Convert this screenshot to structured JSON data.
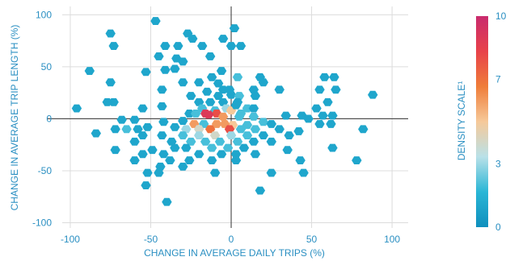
{
  "chart_data": {
    "type": "hexbin-scatter",
    "xlabel": "CHANGE IN AVERAGE DAILY TRIPS (%)",
    "ylabel": "CHANGE IN AVERAGE TRIP LENGTH (%)",
    "xlim": [
      -105,
      110
    ],
    "ylim": [
      -105,
      108
    ],
    "xticks": [
      "-100",
      "-50",
      "0",
      "50",
      "100"
    ],
    "xtick_values": [
      -100,
      -50,
      0,
      50,
      100
    ],
    "yticks": [
      "100",
      "50",
      "0",
      "-50",
      "-100"
    ],
    "ytick_values": [
      100,
      50,
      0,
      -50,
      -100
    ],
    "grid": true,
    "colorbar": {
      "label": "DENSITY SCALE¹",
      "ticks": [
        "10",
        "7",
        "3",
        "0"
      ],
      "tick_values": [
        10,
        7,
        3,
        0
      ],
      "min": 0,
      "max": 10,
      "colors": [
        "#0f8fbd",
        "#2ab6d6",
        "#b9e1e8",
        "#f6c999",
        "#ef7d3a",
        "#e8424a",
        "#c92b6e"
      ]
    },
    "points": [
      {
        "x": -47,
        "y": 94,
        "v": 1
      },
      {
        "x": 2,
        "y": 87,
        "v": 1
      },
      {
        "x": -75,
        "y": 82,
        "v": 1
      },
      {
        "x": -27,
        "y": 82,
        "v": 1
      },
      {
        "x": -24,
        "y": 77,
        "v": 1
      },
      {
        "x": -5,
        "y": 77,
        "v": 1
      },
      {
        "x": -41,
        "y": 70,
        "v": 1
      },
      {
        "x": -33,
        "y": 70,
        "v": 1
      },
      {
        "x": -18,
        "y": 70,
        "v": 1
      },
      {
        "x": 0,
        "y": 70,
        "v": 1
      },
      {
        "x": 6,
        "y": 70,
        "v": 1
      },
      {
        "x": -73,
        "y": 70,
        "v": 1
      },
      {
        "x": -45,
        "y": 60,
        "v": 1
      },
      {
        "x": -13,
        "y": 60,
        "v": 1
      },
      {
        "x": -34,
        "y": 58,
        "v": 1
      },
      {
        "x": -30,
        "y": 55,
        "v": 1
      },
      {
        "x": -41,
        "y": 47,
        "v": 1
      },
      {
        "x": -35,
        "y": 48,
        "v": 1
      },
      {
        "x": -88,
        "y": 46,
        "v": 1
      },
      {
        "x": -53,
        "y": 45,
        "v": 1
      },
      {
        "x": -6,
        "y": 46,
        "v": 1
      },
      {
        "x": -12,
        "y": 40,
        "v": 1
      },
      {
        "x": 4,
        "y": 40,
        "v": 2
      },
      {
        "x": 18,
        "y": 40,
        "v": 1
      },
      {
        "x": 58,
        "y": 40,
        "v": 1
      },
      {
        "x": 64,
        "y": 40,
        "v": 1
      },
      {
        "x": -75,
        "y": 35,
        "v": 1
      },
      {
        "x": -30,
        "y": 35,
        "v": 1
      },
      {
        "x": -20,
        "y": 35,
        "v": 1
      },
      {
        "x": 20,
        "y": 35,
        "v": 1
      },
      {
        "x": -8,
        "y": 34,
        "v": 1
      },
      {
        "x": -43,
        "y": 28,
        "v": 1
      },
      {
        "x": -5,
        "y": 28,
        "v": 1
      },
      {
        "x": -1,
        "y": 28,
        "v": 1
      },
      {
        "x": 14,
        "y": 28,
        "v": 1
      },
      {
        "x": 30,
        "y": 28,
        "v": 1
      },
      {
        "x": 55,
        "y": 28,
        "v": 1
      },
      {
        "x": -15,
        "y": 26,
        "v": 1
      },
      {
        "x": 65,
        "y": 28,
        "v": 1
      },
      {
        "x": 88,
        "y": 23,
        "v": 1
      },
      {
        "x": -25,
        "y": 22,
        "v": 1
      },
      {
        "x": -8,
        "y": 22,
        "v": 1
      },
      {
        "x": 0,
        "y": 23,
        "v": 1
      },
      {
        "x": 5,
        "y": 22,
        "v": 2
      },
      {
        "x": 15,
        "y": 22,
        "v": 1
      },
      {
        "x": -5,
        "y": 16,
        "v": 1
      },
      {
        "x": 4,
        "y": 16,
        "v": 1
      },
      {
        "x": 60,
        "y": 16,
        "v": 1
      },
      {
        "x": -73,
        "y": 16,
        "v": 1
      },
      {
        "x": -77,
        "y": 16,
        "v": 1
      },
      {
        "x": -20,
        "y": 16,
        "v": 1
      },
      {
        "x": -13,
        "y": 16,
        "v": 1
      },
      {
        "x": -3,
        "y": 10,
        "v": 3
      },
      {
        "x": 10,
        "y": 10,
        "v": 2
      },
      {
        "x": 14,
        "y": 10,
        "v": 1
      },
      {
        "x": 53,
        "y": 10,
        "v": 1
      },
      {
        "x": -96,
        "y": 10,
        "v": 1
      },
      {
        "x": -55,
        "y": 10,
        "v": 1
      },
      {
        "x": -43,
        "y": 12,
        "v": 1
      },
      {
        "x": -18,
        "y": 10,
        "v": 2
      },
      {
        "x": 0,
        "y": 8,
        "v": 5
      },
      {
        "x": 3,
        "y": 13,
        "v": 1
      },
      {
        "x": 6,
        "y": 5,
        "v": 2
      },
      {
        "x": -10,
        "y": 8,
        "v": 2
      },
      {
        "x": -26,
        "y": 5,
        "v": 1
      },
      {
        "x": -16,
        "y": 5,
        "v": 9
      },
      {
        "x": -22,
        "y": 5,
        "v": 2
      },
      {
        "x": -9,
        "y": 5,
        "v": 8
      },
      {
        "x": -14,
        "y": 4,
        "v": 9
      },
      {
        "x": -5,
        "y": 2,
        "v": 6
      },
      {
        "x": 5,
        "y": 2,
        "v": 2
      },
      {
        "x": 14,
        "y": 2,
        "v": 2
      },
      {
        "x": 34,
        "y": 3,
        "v": 1
      },
      {
        "x": 44,
        "y": 3,
        "v": 1
      },
      {
        "x": 48,
        "y": 0,
        "v": 1
      },
      {
        "x": 57,
        "y": 3,
        "v": 1
      },
      {
        "x": 63,
        "y": 3,
        "v": 1
      },
      {
        "x": 55,
        "y": -5,
        "v": 1
      },
      {
        "x": 62,
        "y": -5,
        "v": 1
      },
      {
        "x": -60,
        "y": -1,
        "v": 1
      },
      {
        "x": -68,
        "y": -1,
        "v": 1
      },
      {
        "x": -30,
        "y": -2,
        "v": 1
      },
      {
        "x": 20,
        "y": -3,
        "v": 2
      },
      {
        "x": 25,
        "y": -5,
        "v": 1
      },
      {
        "x": -42,
        "y": -3,
        "v": 1
      },
      {
        "x": -23,
        "y": -5,
        "v": 6
      },
      {
        "x": -17,
        "y": -5,
        "v": 2
      },
      {
        "x": -9,
        "y": -5,
        "v": 6
      },
      {
        "x": 1,
        "y": -6,
        "v": 5
      },
      {
        "x": -4,
        "y": -5,
        "v": 6
      },
      {
        "x": 10,
        "y": -6,
        "v": 2
      },
      {
        "x": -1,
        "y": -10,
        "v": 8
      },
      {
        "x": -13,
        "y": -10,
        "v": 7
      },
      {
        "x": -20,
        "y": -10,
        "v": 4
      },
      {
        "x": -28,
        "y": -10,
        "v": 3
      },
      {
        "x": -35,
        "y": -8,
        "v": 1
      },
      {
        "x": -52,
        "y": -8,
        "v": 1
      },
      {
        "x": -58,
        "y": -10,
        "v": 1
      },
      {
        "x": -65,
        "y": -10,
        "v": 2
      },
      {
        "x": -72,
        "y": -10,
        "v": 1
      },
      {
        "x": 6,
        "y": -10,
        "v": 2
      },
      {
        "x": 15,
        "y": -10,
        "v": 2
      },
      {
        "x": 30,
        "y": -10,
        "v": 1
      },
      {
        "x": 42,
        "y": -12,
        "v": 1
      },
      {
        "x": 82,
        "y": -10,
        "v": 1
      },
      {
        "x": -84,
        "y": -14,
        "v": 1
      },
      {
        "x": -55,
        "y": -16,
        "v": 1
      },
      {
        "x": -43,
        "y": -16,
        "v": 1
      },
      {
        "x": -30,
        "y": -16,
        "v": 2
      },
      {
        "x": -20,
        "y": -16,
        "v": 3
      },
      {
        "x": -10,
        "y": -16,
        "v": 4
      },
      {
        "x": 0,
        "y": -16,
        "v": 3
      },
      {
        "x": 10,
        "y": -16,
        "v": 2
      },
      {
        "x": 20,
        "y": -16,
        "v": 1
      },
      {
        "x": 36,
        "y": -16,
        "v": 1
      },
      {
        "x": -60,
        "y": -22,
        "v": 1
      },
      {
        "x": -37,
        "y": -22,
        "v": 1
      },
      {
        "x": -25,
        "y": -22,
        "v": 2
      },
      {
        "x": -16,
        "y": -22,
        "v": 2
      },
      {
        "x": -7,
        "y": -22,
        "v": 2
      },
      {
        "x": 4,
        "y": -22,
        "v": 2
      },
      {
        "x": 14,
        "y": -22,
        "v": 1
      },
      {
        "x": 25,
        "y": -22,
        "v": 1
      },
      {
        "x": -35,
        "y": -28,
        "v": 1
      },
      {
        "x": -28,
        "y": -28,
        "v": 1
      },
      {
        "x": -12,
        "y": -28,
        "v": 2
      },
      {
        "x": -2,
        "y": -28,
        "v": 2
      },
      {
        "x": 8,
        "y": -28,
        "v": 1
      },
      {
        "x": 63,
        "y": -28,
        "v": 1
      },
      {
        "x": -72,
        "y": -30,
        "v": 1
      },
      {
        "x": -49,
        "y": -30,
        "v": 1
      },
      {
        "x": -6,
        "y": -34,
        "v": 1
      },
      {
        "x": 3,
        "y": -34,
        "v": 1
      },
      {
        "x": 35,
        "y": -30,
        "v": 1
      },
      {
        "x": -55,
        "y": -34,
        "v": 1
      },
      {
        "x": -42,
        "y": -34,
        "v": 1
      },
      {
        "x": -20,
        "y": -34,
        "v": 1
      },
      {
        "x": 15,
        "y": -34,
        "v": 1
      },
      {
        "x": -60,
        "y": -40,
        "v": 1
      },
      {
        "x": -38,
        "y": -40,
        "v": 1
      },
      {
        "x": -26,
        "y": -40,
        "v": 1
      },
      {
        "x": -12,
        "y": -40,
        "v": 1
      },
      {
        "x": 3,
        "y": -40,
        "v": 1
      },
      {
        "x": 78,
        "y": -40,
        "v": 1
      },
      {
        "x": 43,
        "y": -40,
        "v": 1
      },
      {
        "x": -44,
        "y": -46,
        "v": 1
      },
      {
        "x": -30,
        "y": -46,
        "v": 1
      },
      {
        "x": -52,
        "y": -52,
        "v": 1
      },
      {
        "x": -45,
        "y": -52,
        "v": 1
      },
      {
        "x": -10,
        "y": -52,
        "v": 1
      },
      {
        "x": 25,
        "y": -52,
        "v": 1
      },
      {
        "x": 45,
        "y": -52,
        "v": 1
      },
      {
        "x": -53,
        "y": -64,
        "v": 1
      },
      {
        "x": 18,
        "y": -69,
        "v": 1
      },
      {
        "x": -40,
        "y": -80,
        "v": 1
      }
    ]
  }
}
